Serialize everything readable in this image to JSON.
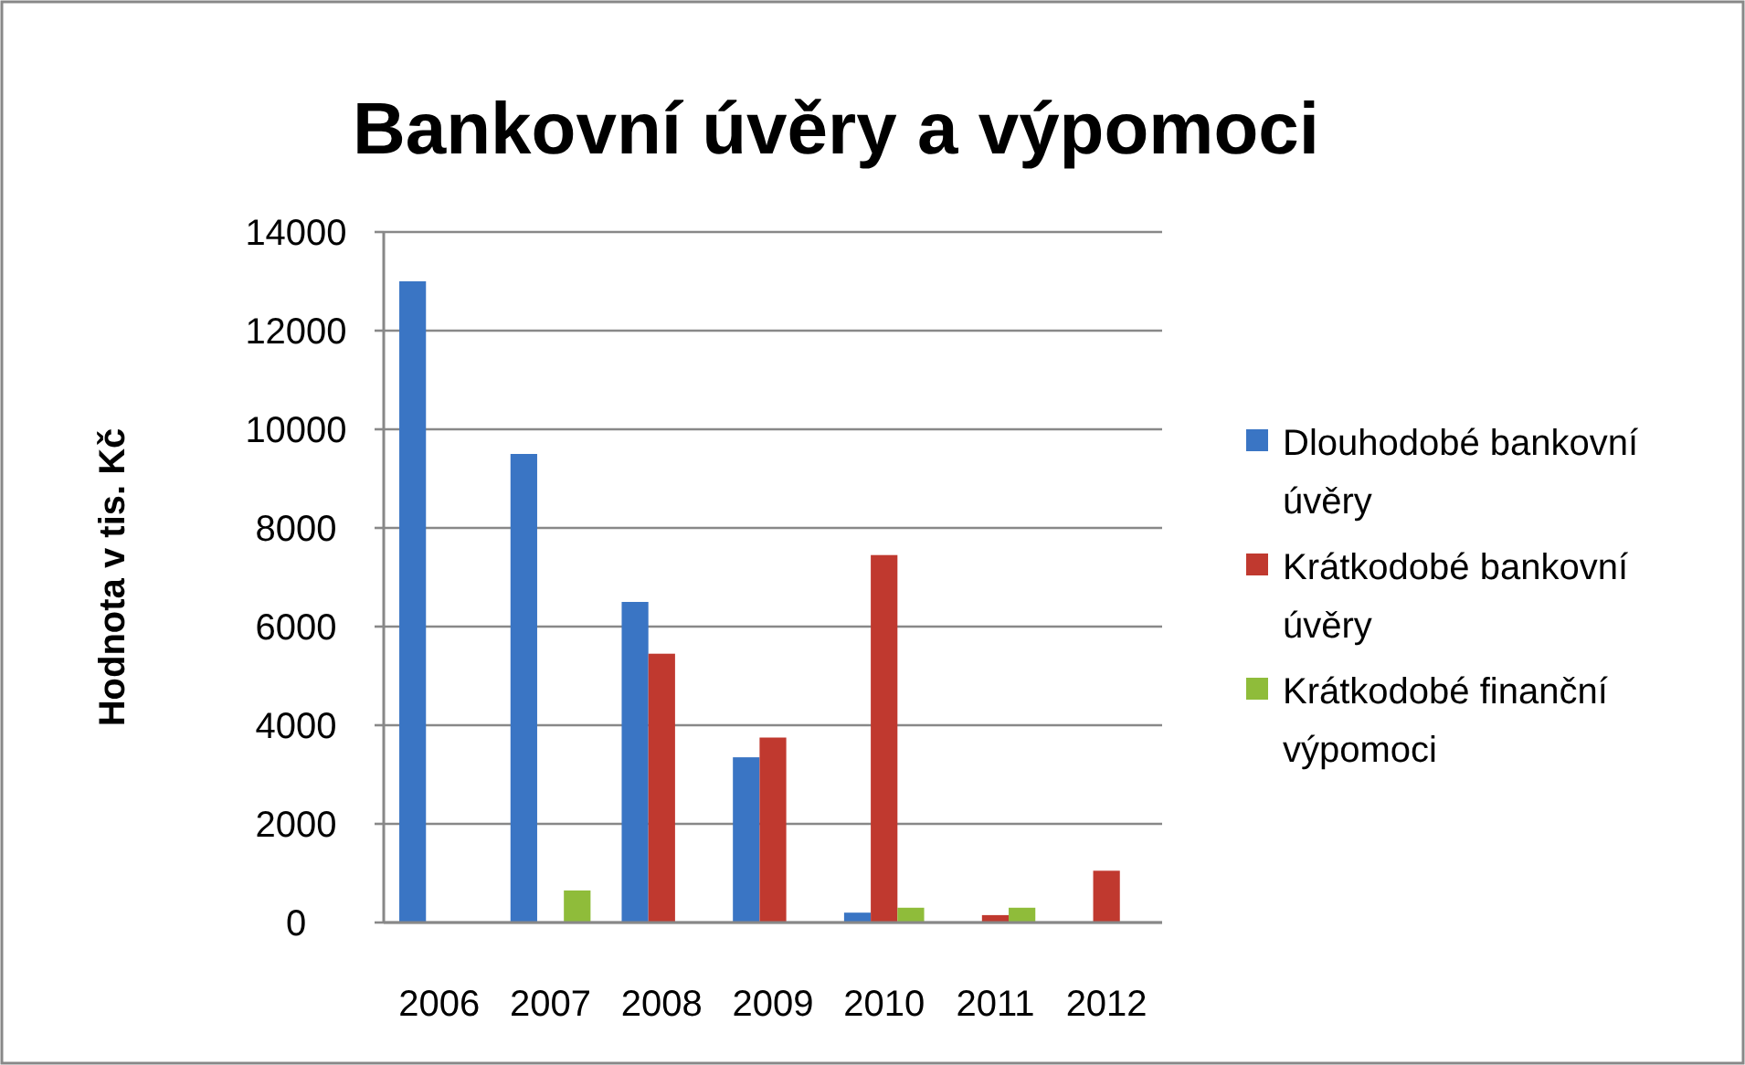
{
  "chart_data": {
    "type": "bar",
    "title": "Bankovní úvěry a výpomoci",
    "ylabel": "Hodnota v tis. Kč",
    "categories": [
      "2006",
      "2007",
      "2008",
      "2009",
      "2010",
      "2011",
      "2012"
    ],
    "series": [
      {
        "name": "Dlouhodobé bankovní úvěry",
        "color": "#3a75c4",
        "values": [
          13000,
          9500,
          6500,
          3350,
          200,
          0,
          0
        ]
      },
      {
        "name": "Krátkodobé bankovní úvěry",
        "color": "#c0392f",
        "values": [
          0,
          0,
          5450,
          3750,
          7450,
          150,
          1050
        ]
      },
      {
        "name": "Krátkodobé finanční výpomoci",
        "color": "#8fbc3a",
        "values": [
          0,
          650,
          0,
          0,
          300,
          300,
          0
        ]
      }
    ],
    "ylim": [
      0,
      14000
    ],
    "yticks": [
      0,
      2000,
      4000,
      6000,
      8000,
      10000,
      12000,
      14000
    ],
    "grid": "y",
    "legend": "right"
  }
}
